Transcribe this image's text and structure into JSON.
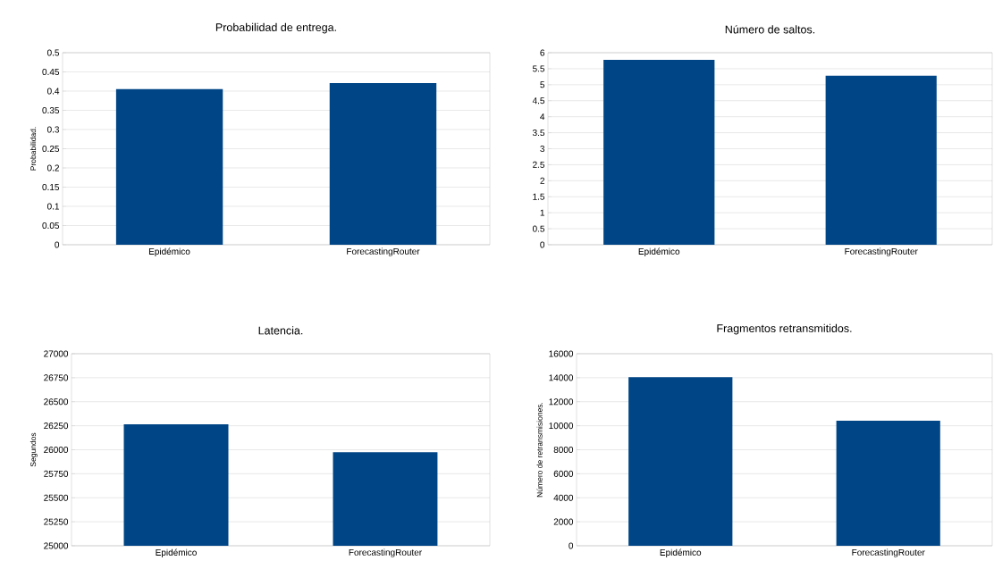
{
  "chart_data": [
    {
      "type": "bar",
      "title": "Probabilidad de entrega.",
      "ylabel": "Probabilidad.",
      "categories": [
        "Epidémico",
        "ForecastingRouter"
      ],
      "values": [
        0.405,
        0.421
      ],
      "color": "#004586",
      "ylim": [
        0,
        0.5
      ],
      "yticks": [
        0,
        0.05,
        0.1,
        0.15,
        0.2,
        0.25,
        0.3,
        0.35,
        0.4,
        0.45,
        0.5
      ],
      "grid": "y"
    },
    {
      "type": "bar",
      "title": "Número de saltos.",
      "categories": [
        "Epidémico",
        "ForecastingRouter"
      ],
      "values": [
        5.78,
        5.28
      ],
      "color": "#004586",
      "ylim": [
        0,
        6
      ],
      "yticks": [
        0,
        0.5,
        1,
        1.5,
        2,
        2.5,
        3,
        3.5,
        4,
        4.5,
        5,
        5.5,
        6
      ],
      "grid": "y"
    },
    {
      "type": "bar",
      "title": "Latencia.",
      "ylabel": "Segundos",
      "categories": [
        "Epidémico",
        "ForecastingRouter"
      ],
      "values": [
        26265,
        25975
      ],
      "color": "#004586",
      "ylim": [
        25000,
        27000
      ],
      "yticks": [
        25000,
        25250,
        25500,
        25750,
        26000,
        26250,
        26500,
        26750,
        27000
      ],
      "grid": "y"
    },
    {
      "type": "bar",
      "title": "Fragmentos retransmitidos.",
      "ylabel": "Número de retransmisiones.",
      "categories": [
        "Epidémico",
        "ForecastingRouter"
      ],
      "values": [
        14050,
        10420
      ],
      "color": "#004586",
      "ylim": [
        0,
        16000
      ],
      "yticks": [
        0,
        2000,
        4000,
        6000,
        8000,
        10000,
        12000,
        14000,
        16000
      ],
      "grid": "y"
    }
  ]
}
